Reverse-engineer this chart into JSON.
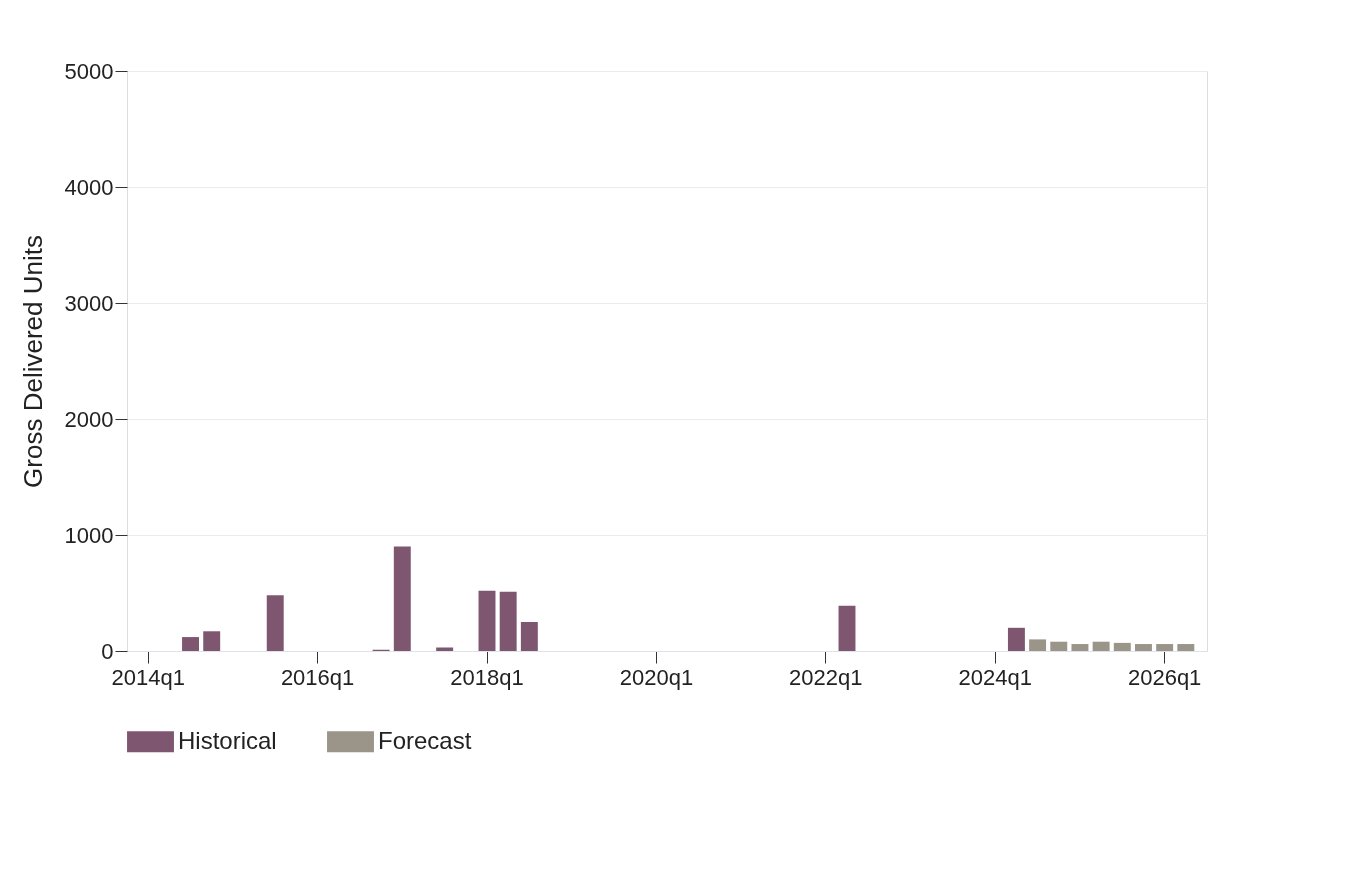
{
  "chart_data": {
    "type": "bar",
    "ylabel": "Gross Delivered Units",
    "categories": [
      "2014q1",
      null,
      null,
      null,
      null,
      null,
      null,
      null,
      "2016q1",
      null,
      null,
      null,
      null,
      null,
      null,
      null,
      "2018q1",
      null,
      null,
      null,
      null,
      null,
      null,
      null,
      "2020q1",
      null,
      null,
      null,
      null,
      null,
      null,
      null,
      "2022q1",
      null,
      null,
      null,
      null,
      null,
      null,
      null,
      "2024q1",
      null,
      null,
      null,
      null,
      null,
      null,
      null,
      "2026q1",
      null
    ],
    "ylim": [
      0,
      5000
    ],
    "yticks": [
      0,
      1000,
      2000,
      3000,
      4000,
      5000
    ],
    "grid": "y",
    "legend": "bottom",
    "series": [
      {
        "name": "Historical",
        "color": "#7f5670",
        "values": [
          null,
          null,
          120,
          170,
          null,
          null,
          480,
          null,
          null,
          null,
          null,
          10,
          900,
          null,
          30,
          null,
          520,
          510,
          250,
          null,
          null,
          null,
          null,
          null,
          null,
          null,
          null,
          null,
          null,
          null,
          null,
          null,
          null,
          390,
          null,
          null,
          null,
          null,
          null,
          null,
          null,
          200,
          null,
          null,
          null,
          null,
          null,
          null,
          null,
          null
        ]
      },
      {
        "name": "Forecast",
        "color": "#9b9488",
        "values": [
          null,
          null,
          null,
          null,
          null,
          null,
          null,
          null,
          null,
          null,
          null,
          null,
          null,
          null,
          null,
          null,
          null,
          null,
          null,
          null,
          null,
          null,
          null,
          null,
          null,
          null,
          null,
          null,
          null,
          null,
          null,
          null,
          null,
          null,
          null,
          null,
          null,
          null,
          null,
          null,
          null,
          null,
          100,
          80,
          60,
          80,
          70,
          60,
          60,
          60
        ]
      }
    ]
  }
}
